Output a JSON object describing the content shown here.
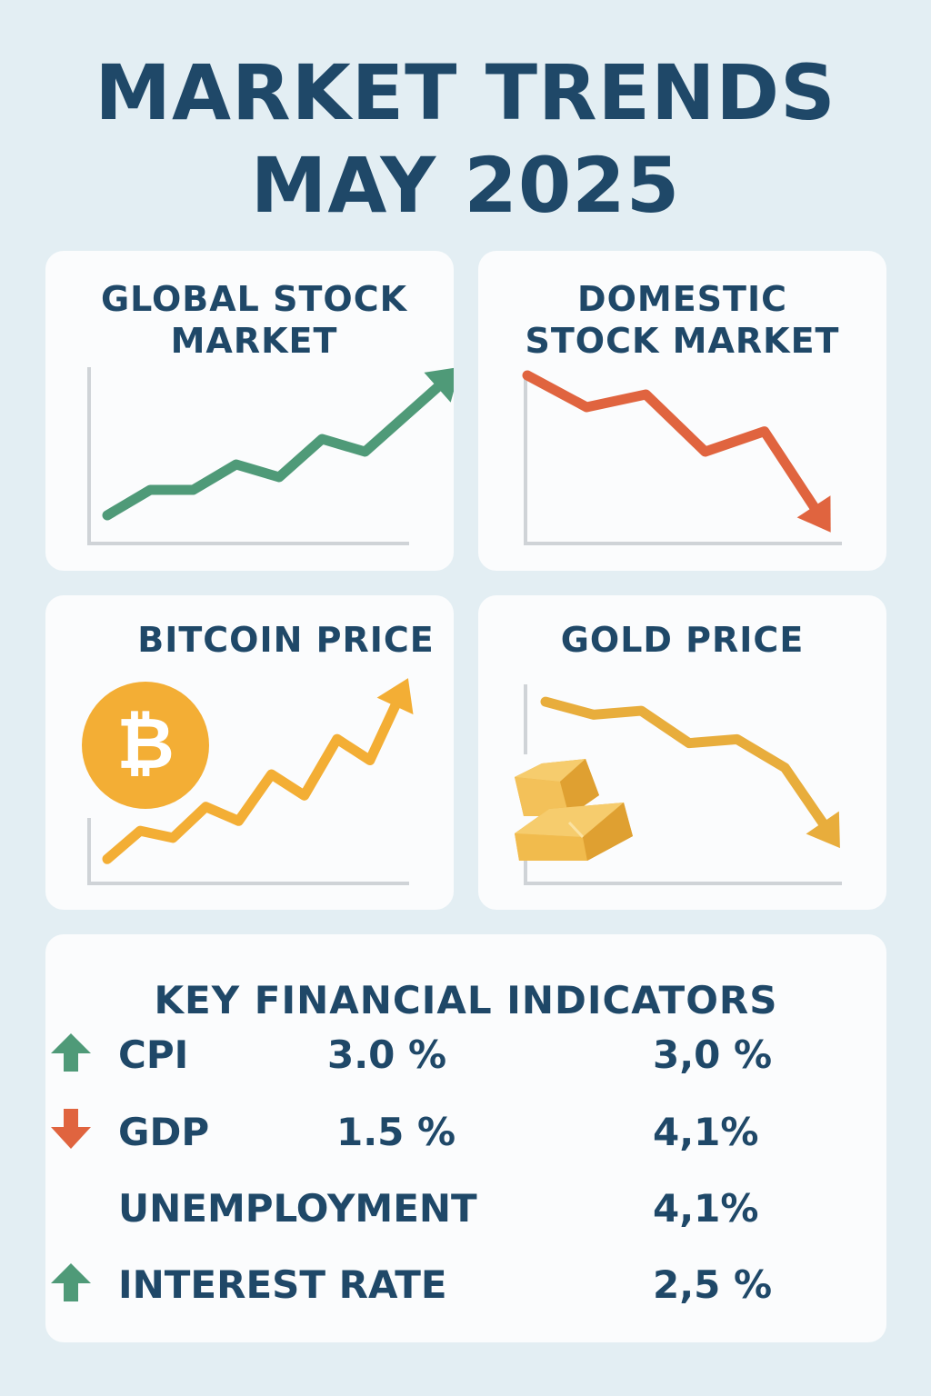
{
  "title": {
    "line1": "MARKET TRENDS",
    "line2": "MAY 2025"
  },
  "colors": {
    "background": "#e3eef3",
    "text": "#1f4868",
    "up": "#4f9a78",
    "down": "#e0643f",
    "bitcoin": "#f3ae35",
    "gold": "#e8ad3c"
  },
  "chart_data": [
    {
      "type": "line",
      "title": "GLOBAL STOCK MARKET",
      "trend": "up",
      "color": "#4f9a78",
      "x": [
        1,
        2,
        3,
        4,
        5,
        6,
        7,
        8,
        9
      ],
      "values": [
        1,
        3,
        3,
        5,
        4,
        7,
        6,
        9,
        12
      ],
      "ylim": [
        0,
        12.5
      ]
    },
    {
      "type": "line",
      "title": "DOMESTIC STOCK MARKET",
      "trend": "down",
      "color": "#e0643f",
      "x": [
        1,
        2,
        3,
        4,
        5,
        6
      ],
      "values": [
        12,
        9.5,
        10.5,
        6,
        7.6,
        0.5
      ],
      "ylim": [
        0,
        12.5
      ]
    },
    {
      "type": "line",
      "title": "BITCOIN PRICE",
      "trend": "up",
      "color": "#f3ae35",
      "icon": "bitcoin-icon",
      "x": [
        1,
        2,
        3,
        4,
        5,
        6,
        7,
        8,
        9,
        10
      ],
      "values": [
        0.5,
        2.5,
        2,
        4.2,
        3.2,
        6.5,
        5,
        9,
        7.5,
        12.5
      ],
      "ylim": [
        0,
        13
      ]
    },
    {
      "type": "line",
      "title": "GOLD PRICE",
      "trend": "down",
      "color": "#e8ad3c",
      "icon": "gold-bars-icon",
      "x": [
        1,
        2,
        3,
        4,
        5,
        6,
        7
      ],
      "values": [
        12.5,
        11.5,
        11.8,
        9.3,
        9.6,
        7.4,
        2
      ],
      "ylim": [
        0,
        13
      ]
    }
  ],
  "indicators": {
    "title": "KEY FINANCIAL INDICATORS",
    "rows": [
      {
        "label": "CPI",
        "value": "3.0 %",
        "arrow": "up",
        "change": "3,0 %"
      },
      {
        "label": "GDP",
        "value": "1.5 %",
        "arrow": "down",
        "change": "4,1%"
      },
      {
        "label": "UNEMPLOYMENT",
        "value": "",
        "arrow": "none",
        "change": "4,1%"
      },
      {
        "label": "INTEREST RATE",
        "value": "",
        "arrow": "up",
        "change": "2,5 %"
      }
    ]
  }
}
